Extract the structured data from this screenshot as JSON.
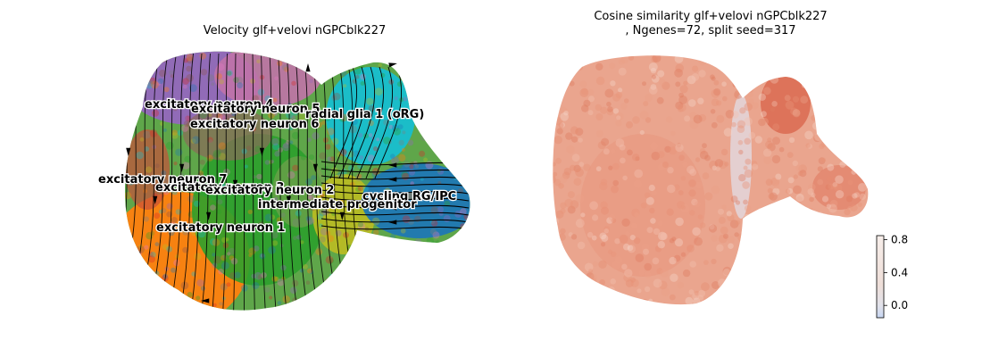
{
  "panels": {
    "left_title": "Velocity glf+velovi nGPCblk227",
    "right_title_line1": "Cosine similarity glf+velovi nGPCblk227",
    "right_title_line2": ", Ngenes=72, split seed=317"
  },
  "chart_data": [
    {
      "type": "scatter",
      "title": "Velocity glf+velovi nGPCblk227",
      "xlabel": "",
      "ylabel": "",
      "axes": "off",
      "overlay": "velocity streamlines",
      "clusters": [
        {
          "name": "excitatory neuron 4",
          "color": "#9467bd"
        },
        {
          "name": "excitatory neuron 5",
          "color": "#e377c2"
        },
        {
          "name": "excitatory neuron 6",
          "color": "#8c564b"
        },
        {
          "name": "radial glia 1 (oRG)",
          "color": "#17becf"
        },
        {
          "name": "excitatory neuron 7",
          "color": "#d62728"
        },
        {
          "name": "excitatory neuron 3",
          "color": "#2ca02c"
        },
        {
          "name": "excitatory neuron 2",
          "color": "#7f7f7f"
        },
        {
          "name": "cycling RG/IPC",
          "color": "#1f77b4"
        },
        {
          "name": "intermediate progenitor",
          "color": "#bcbd22"
        },
        {
          "name": "excitatory neuron 1",
          "color": "#ff7f0e"
        }
      ]
    },
    {
      "type": "scatter",
      "title": "Cosine similarity glf+velovi nGPCblk227, Ngenes=72, split seed=317",
      "xlabel": "",
      "ylabel": "",
      "axes": "off",
      "colorbar": {
        "ticks": [
          "0.8",
          "0.4",
          "0.0"
        ],
        "tick_values": [
          0.8,
          0.4,
          0.0
        ],
        "range": [
          -0.15,
          0.85
        ],
        "colormap": "coolwarm"
      }
    }
  ]
}
